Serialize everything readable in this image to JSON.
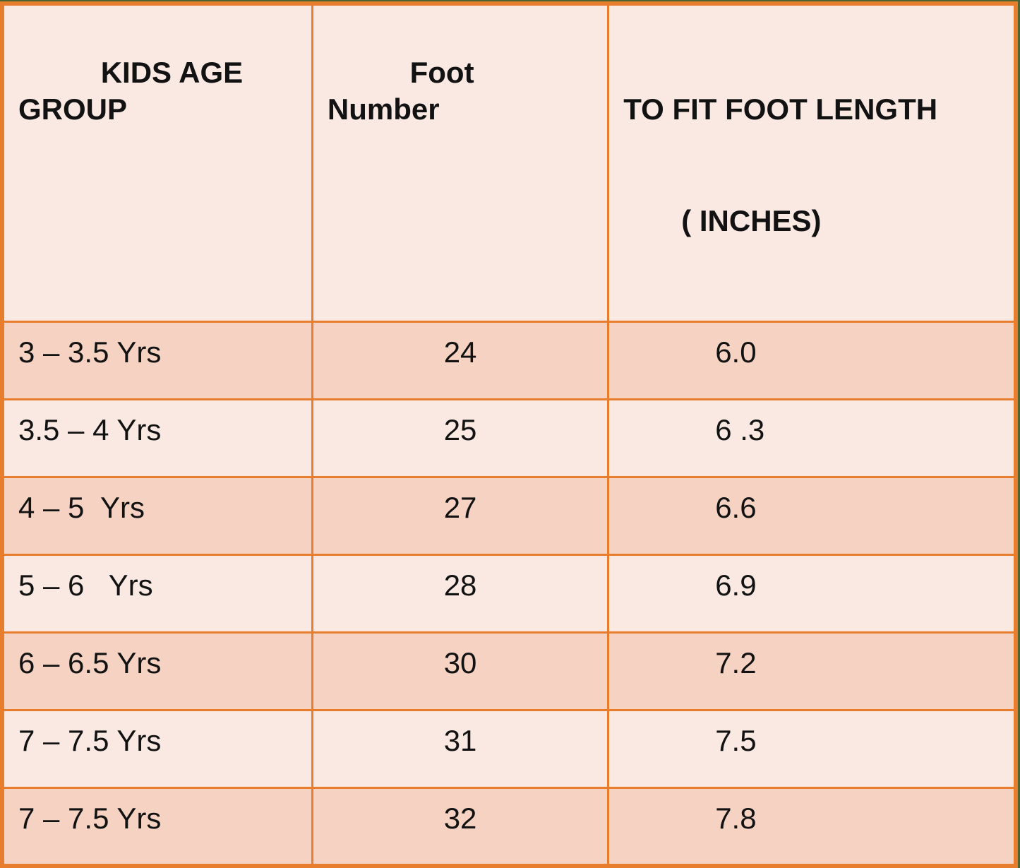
{
  "table": {
    "columns": [
      {
        "label": "KIDS AGE GROUP"
      },
      {
        "label": "Foot Number"
      },
      {
        "label": "TO FIT FOOT LENGTH",
        "label_line2": "( INCHES)"
      }
    ],
    "rows": [
      {
        "age": "3 – 3.5 Yrs",
        "foot_number": "24",
        "fit_length_in": "6.0"
      },
      {
        "age": "3.5 – 4 Yrs",
        "foot_number": "25",
        "fit_length_in": "6 .3"
      },
      {
        "age": "4 – 5  Yrs",
        "foot_number": "27",
        "fit_length_in": "6.6"
      },
      {
        "age": "5 – 6   Yrs",
        "foot_number": "28",
        "fit_length_in": "6.9"
      },
      {
        "age": "6 – 6.5 Yrs",
        "foot_number": "30",
        "fit_length_in": "7.2"
      },
      {
        "age": "7 – 7.5 Yrs",
        "foot_number": "31",
        "fit_length_in": "7.5"
      },
      {
        "age": "7 – 7.5 Yrs",
        "foot_number": "32",
        "fit_length_in": "7.8"
      }
    ],
    "colors": {
      "border_orange": "#e87d2e",
      "edge_green": "#4e6430",
      "row_light_pink": "#fae9e3",
      "row_peach": "#f6d2c2",
      "text": "#121212"
    }
  }
}
